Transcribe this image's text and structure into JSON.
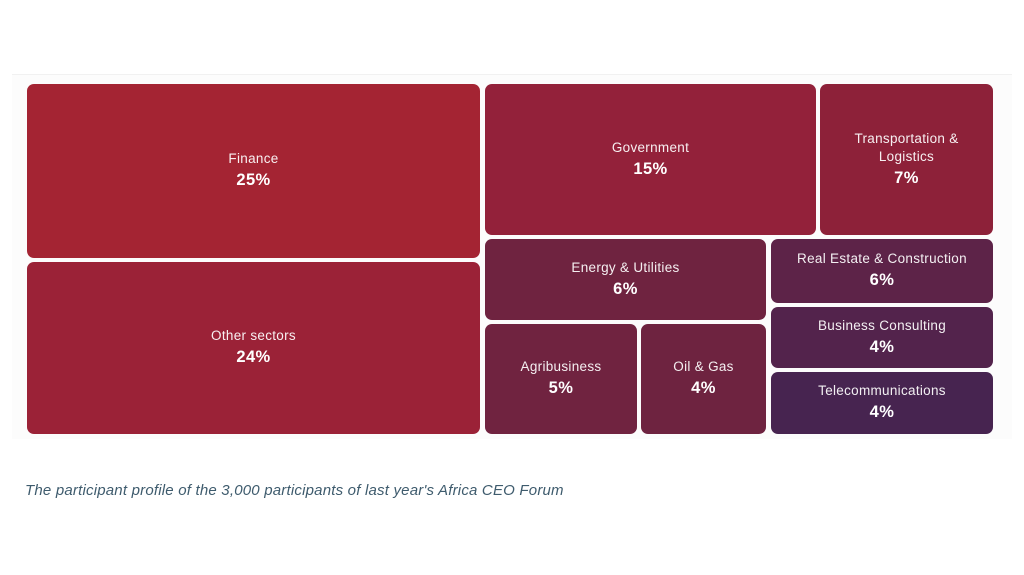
{
  "chart_data": {
    "type": "treemap",
    "caption": "The participant profile of the 3,000 participants of last year's Africa CEO Forum",
    "unit": "%",
    "total_participants": "3,000",
    "categories": [
      "Finance",
      "Other sectors",
      "Government",
      "Transportation & Logistics",
      "Energy & Utilities",
      "Real Estate & Construction",
      "Agribusiness",
      "Oil & Gas",
      "Business Consulting",
      "Telecommunications"
    ],
    "values": [
      25,
      24,
      15,
      7,
      6,
      6,
      5,
      4,
      4,
      4
    ],
    "legend": "none",
    "tiles": [
      {
        "label": "Finance",
        "pct": "25%",
        "value": 25,
        "color": "#a42433"
      },
      {
        "label": "Other sectors",
        "pct": "24%",
        "value": 24,
        "color": "#9b2237"
      },
      {
        "label": "Government",
        "pct": "15%",
        "value": 15,
        "color": "#93213a"
      },
      {
        "label": "Transportation & Logistics",
        "pct": "7%",
        "value": 7,
        "color": "#8d2139"
      },
      {
        "label": "Energy & Utilities",
        "pct": "6%",
        "value": 6,
        "color": "#6f2340"
      },
      {
        "label": "Real Estate & Construction",
        "pct": "6%",
        "value": 6,
        "color": "#5d2348"
      },
      {
        "label": "Agribusiness",
        "pct": "5%",
        "value": 5,
        "color": "#702340"
      },
      {
        "label": "Oil & Gas",
        "pct": "4%",
        "value": 4,
        "color": "#6e2340"
      },
      {
        "label": "Business Consulting",
        "pct": "4%",
        "value": 4,
        "color": "#53234c"
      },
      {
        "label": "Telecommunications",
        "pct": "4%",
        "value": 4,
        "color": "#472450"
      }
    ]
  }
}
